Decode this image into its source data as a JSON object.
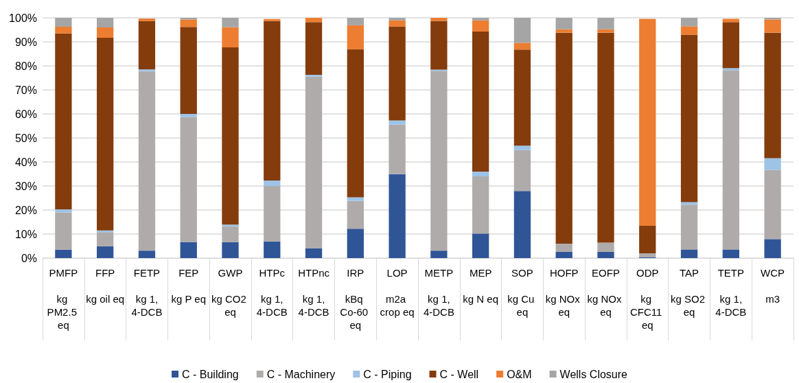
{
  "chart_data": {
    "type": "bar",
    "stacked": true,
    "categories": [
      "PMFP\nkg PM2.5 eq",
      "FFP\nkg oil eq",
      "FETP\nkg 1,4-DCB",
      "FEP\nkg P eq",
      "GWP\nkg CO2 eq",
      "HTPc\nkg 1,4-DCB",
      "HTPnc\nkg 1,4-DCB",
      "IRP\nkBq Co-60 eq",
      "LOP\nm2a crop eq",
      "METP\nkg 1,4-DCB",
      "MEP\nkg N eq",
      "SOP\nkg Cu eq",
      "HOFP\nkg NOx eq",
      "EOFP\nkg NOx eq",
      "ODP\nkg CFC11 eq",
      "TAP\nkg SO2 eq",
      "TETP\nkg 1,4-DCB",
      "WCP\nm3"
    ],
    "series": [
      {
        "name": "C - Building",
        "color": "#2f5597",
        "values": [
          3.5,
          4.9,
          3.1,
          6.7,
          6.6,
          6.9,
          4.1,
          12.2,
          34.9,
          3.1,
          10.2,
          27.9,
          2.6,
          2.6,
          0.3,
          3.6,
          3.6,
          7.9
        ]
      },
      {
        "name": "C - Machinery",
        "color": "#afabab",
        "values": [
          15.5,
          5.9,
          74.7,
          51.9,
          6.5,
          23.1,
          71.4,
          11.6,
          20.6,
          74.8,
          23.8,
          17.0,
          3.4,
          3.8,
          1.7,
          18.6,
          74.6,
          28.8
        ]
      },
      {
        "name": "C - Piping",
        "color": "#9dc3e6",
        "values": [
          1.3,
          0.7,
          0.8,
          1.4,
          0.8,
          2.3,
          0.8,
          1.5,
          1.8,
          0.5,
          2.0,
          1.9,
          0,
          0,
          0,
          1.1,
          0.9,
          4.9
        ]
      },
      {
        "name": "C - Well",
        "color": "#843c0c",
        "values": [
          73.2,
          80.2,
          20.1,
          36.2,
          73.8,
          66.4,
          21.9,
          61.6,
          39.1,
          20.3,
          58.3,
          40.0,
          87.8,
          87.4,
          11.4,
          69.6,
          19.1,
          52.2
        ]
      },
      {
        "name": "O&M",
        "color": "#ed7d31",
        "values": [
          2.8,
          4.3,
          1.0,
          3.1,
          8.4,
          0.8,
          1.8,
          10.0,
          2.5,
          1.3,
          4.6,
          2.8,
          1.4,
          1.4,
          86.2,
          3.6,
          1.4,
          5.5
        ]
      },
      {
        "name": "Wells Closure",
        "color": "#a5a5a5",
        "values": [
          3.7,
          4.0,
          null,
          0.7,
          3.9,
          null,
          0,
          3.1,
          1.1,
          0,
          1.1,
          10.4,
          4.8,
          4.8,
          null,
          3.5,
          null,
          0.7
        ]
      }
    ],
    "ylim": [
      0,
      100
    ],
    "yticks": [
      {
        "value": 0,
        "label": "0%"
      },
      {
        "value": 10,
        "label": "10%"
      },
      {
        "value": 20,
        "label": "20%"
      },
      {
        "value": 30,
        "label": "30%"
      },
      {
        "value": 40,
        "label": "40%"
      },
      {
        "value": 50,
        "label": "50%"
      },
      {
        "value": 60,
        "label": "60%"
      },
      {
        "value": 70,
        "label": "70%"
      },
      {
        "value": 80,
        "label": "80%"
      },
      {
        "value": 90,
        "label": "90%"
      },
      {
        "value": 100,
        "label": "100%"
      }
    ],
    "grid": "y",
    "legend": "bottom"
  }
}
